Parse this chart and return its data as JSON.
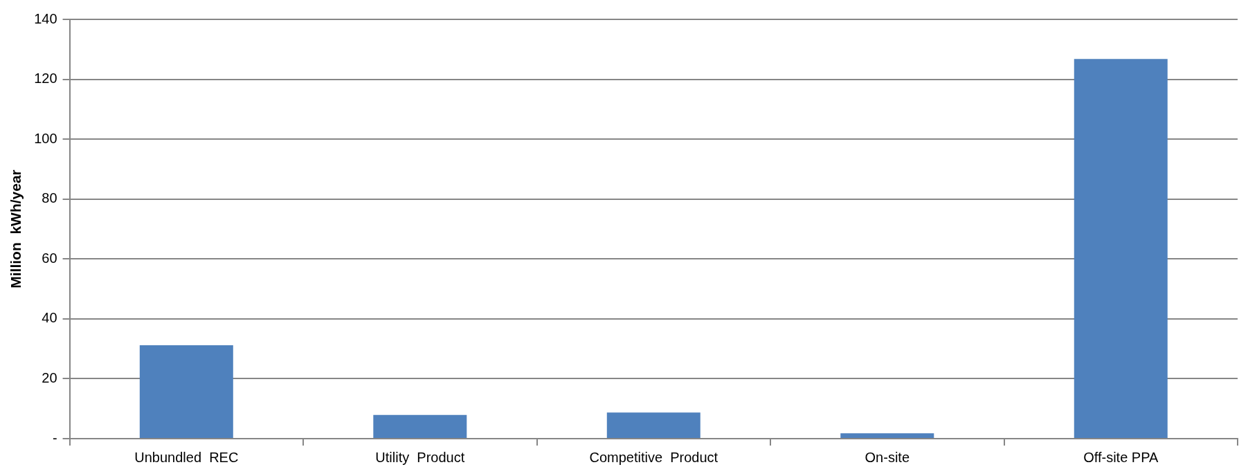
{
  "chart_data": {
    "type": "bar",
    "ylabel": "Million  kWh/year",
    "categories": [
      "Unbundled  REC",
      "Utility  Product",
      "Competitive  Product",
      "On-site",
      "Off-site PPA"
    ],
    "values": [
      31.2,
      7.9,
      8.7,
      1.8,
      126.8
    ],
    "color": "#4f81bd",
    "ylim": [
      0,
      140
    ],
    "yticks": [
      {
        "value": 0,
        "label": "-"
      },
      20,
      40,
      60,
      80,
      100,
      120,
      140
    ],
    "grid": "y",
    "legend": false
  }
}
